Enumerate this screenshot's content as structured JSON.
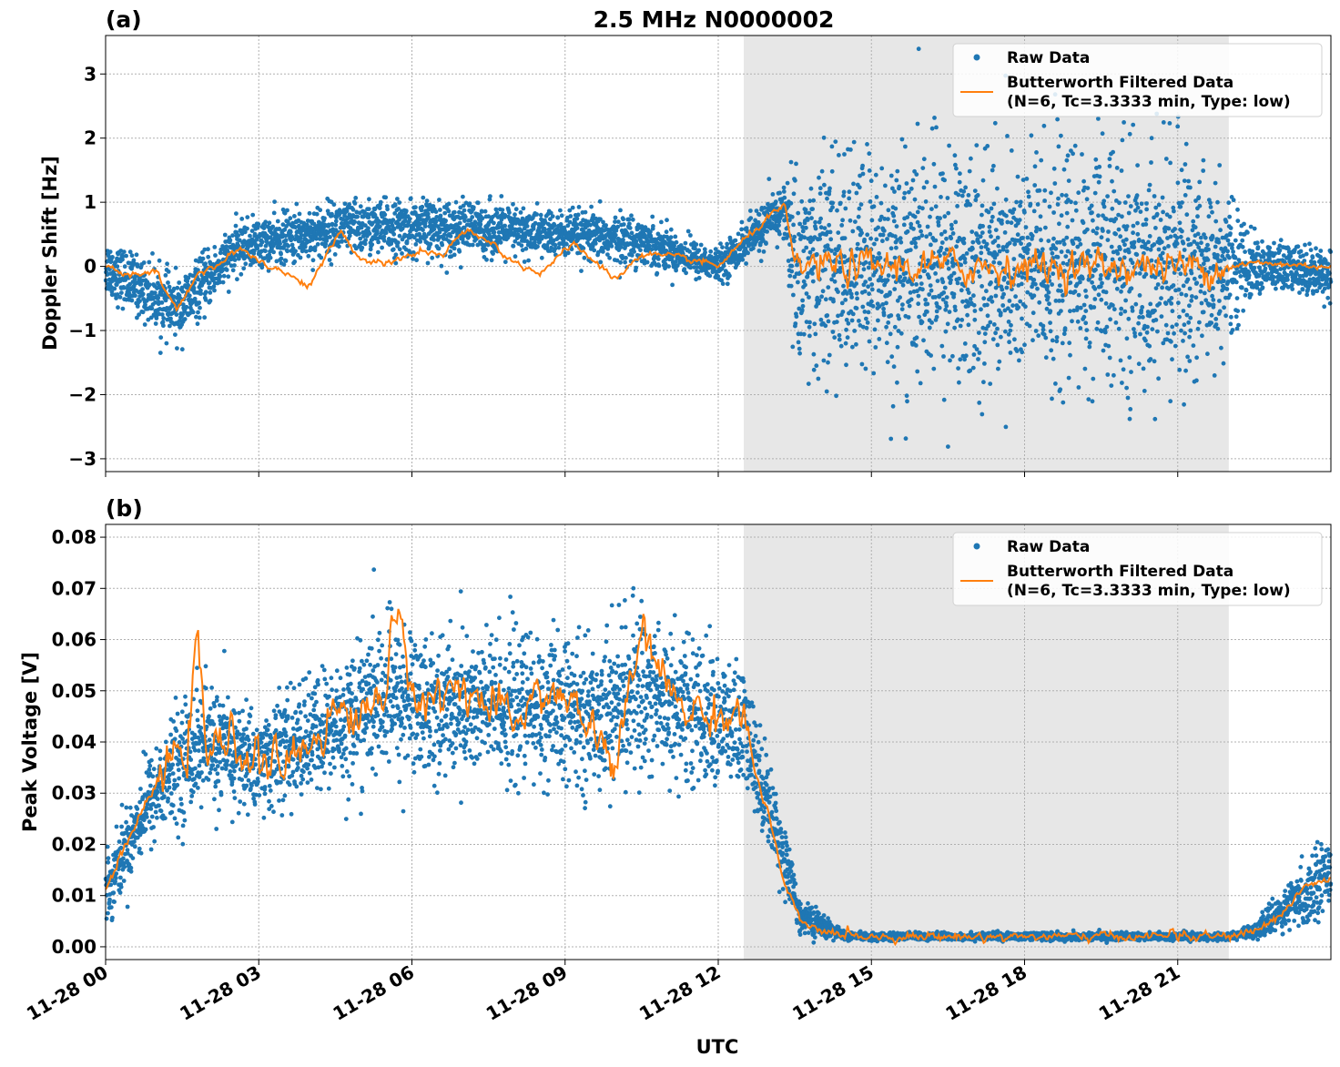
{
  "title": "2.5 MHz N0000002",
  "xlabel": "UTC",
  "colors": {
    "raw": "#1f77b4",
    "filtered": "#ff7f0e",
    "shade": "#e7e7e7",
    "grid": "#b0b0b0"
  },
  "legend": {
    "raw_label": "Raw Data",
    "filtered_label_line1": "Butterworth Filtered Data",
    "filtered_label_line2": "(N=6, Tc=3.3333 min, Type: low)",
    "placement": "top-right"
  },
  "x_ticks": [
    "11-28 00",
    "11-28 03",
    "11-28 06",
    "11-28 09",
    "11-28 12",
    "11-28 15",
    "11-28 18",
    "11-28 21"
  ],
  "chart_data": [
    {
      "panel": "(a)",
      "type": "scatter",
      "ylabel": "Doppler Shift [Hz]",
      "xlim_hours": [
        0,
        24
      ],
      "ylim": [
        -3.2,
        3.6
      ],
      "yticks": [
        -3,
        -2,
        -1,
        0,
        1,
        2,
        3
      ],
      "ytick_labels": [
        "−3",
        "−2",
        "−1",
        "0",
        "1",
        "2",
        "3"
      ],
      "grid": true,
      "shaded_interval_hours": [
        12.5,
        22.0
      ],
      "series": [
        {
          "name": "Raw Data",
          "kind": "points",
          "x_hours": [
            0,
            1.4,
            2.6,
            4.6,
            7.0,
            8.8,
            10.5,
            12.0,
            13.3,
            13.5,
            16,
            19,
            21.5,
            22.5,
            24
          ],
          "center": [
            0.0,
            -0.7,
            0.3,
            0.6,
            0.6,
            0.5,
            0.4,
            0.0,
            0.9,
            0.0,
            0.0,
            0.0,
            0.0,
            0.0,
            -0.1
          ],
          "spread": [
            0.35,
            0.4,
            0.3,
            0.35,
            0.35,
            0.3,
            0.3,
            0.2,
            0.35,
            1.3,
            1.5,
            1.5,
            1.4,
            0.35,
            0.3
          ]
        },
        {
          "name": "Butterworth Filtered Data (N=6, Tc=3.3333 min, Type: low)",
          "kind": "line",
          "x_hours": [
            0,
            0.5,
            1.0,
            1.4,
            1.8,
            2.3,
            2.6,
            3.0,
            3.5,
            4.0,
            4.6,
            5.0,
            5.6,
            6.2,
            6.6,
            7.0,
            7.6,
            8.0,
            8.5,
            8.8,
            9.2,
            9.6,
            10.0,
            10.5,
            11.0,
            11.5,
            12.0,
            12.5,
            12.9,
            13.3,
            13.5,
            22.0,
            22.5,
            24
          ],
          "y": [
            0.0,
            -0.15,
            -0.1,
            -0.7,
            -0.1,
            0.05,
            0.3,
            0.1,
            -0.1,
            -0.3,
            0.55,
            0.1,
            0.05,
            0.25,
            0.15,
            0.55,
            0.35,
            0.05,
            -0.1,
            0.1,
            0.35,
            0.05,
            -0.2,
            0.2,
            0.15,
            0.1,
            0.0,
            0.4,
            0.7,
            0.95,
            0.0,
            0.0,
            0.05,
            0.0
          ],
          "noise_region_hours": [
            13.5,
            22.0
          ],
          "noise_amplitude": 0.25
        }
      ]
    },
    {
      "panel": "(b)",
      "type": "scatter",
      "ylabel": "Peak Voltage [V]",
      "xlim_hours": [
        0,
        24
      ],
      "ylim": [
        -0.0025,
        0.0825
      ],
      "yticks": [
        0.0,
        0.01,
        0.02,
        0.03,
        0.04,
        0.05,
        0.06,
        0.07,
        0.08
      ],
      "ytick_labels": [
        "0.00",
        "0.01",
        "0.02",
        "0.03",
        "0.04",
        "0.05",
        "0.06",
        "0.07",
        "0.08"
      ],
      "grid": true,
      "shaded_interval_hours": [
        12.5,
        22.0
      ],
      "series": [
        {
          "name": "Raw Data",
          "kind": "points",
          "x_hours": [
            0,
            0.8,
            1.8,
            3.0,
            4.5,
            5.5,
            6.5,
            8.0,
            9.5,
            10.5,
            11.5,
            12.5,
            13.0,
            13.6,
            14.5,
            21.0,
            22.0,
            22.5,
            23.5,
            24
          ],
          "center": [
            0.011,
            0.028,
            0.04,
            0.036,
            0.043,
            0.049,
            0.047,
            0.047,
            0.045,
            0.05,
            0.046,
            0.042,
            0.028,
            0.006,
            0.002,
            0.002,
            0.002,
            0.003,
            0.01,
            0.016
          ],
          "spread": [
            0.005,
            0.007,
            0.01,
            0.008,
            0.01,
            0.012,
            0.011,
            0.012,
            0.011,
            0.013,
            0.011,
            0.01,
            0.007,
            0.003,
            0.0006,
            0.0006,
            0.0006,
            0.001,
            0.005,
            0.006
          ]
        },
        {
          "name": "Butterworth Filtered Data (N=6, Tc=3.3333 min, Type: low)",
          "kind": "line",
          "x_hours": [
            0,
            0.4,
            0.8,
            1.2,
            1.6,
            1.8,
            2.0,
            2.5,
            3.0,
            3.5,
            4.0,
            4.5,
            5.0,
            5.5,
            5.6,
            6.0,
            6.5,
            7.0,
            7.5,
            8.0,
            8.5,
            9.0,
            9.5,
            10.0,
            10.5,
            11.0,
            11.5,
            12.0,
            12.5,
            12.7,
            13.0,
            13.3,
            13.6,
            14.0,
            15.0,
            20.8,
            20.9,
            21.0,
            22.0,
            22.5,
            23.0,
            23.5,
            24
          ],
          "y": [
            0.011,
            0.02,
            0.028,
            0.035,
            0.04,
            0.058,
            0.038,
            0.04,
            0.036,
            0.035,
            0.04,
            0.046,
            0.045,
            0.05,
            0.067,
            0.05,
            0.048,
            0.052,
            0.046,
            0.044,
            0.05,
            0.048,
            0.043,
            0.035,
            0.062,
            0.05,
            0.046,
            0.045,
            0.046,
            0.035,
            0.025,
            0.012,
            0.005,
            0.003,
            0.002,
            0.002,
            0.004,
            0.002,
            0.002,
            0.003,
            0.006,
            0.012,
            0.013
          ],
          "noise_region_hours": [
            1.0,
            12.6
          ],
          "noise_amplitude": 0.004
        }
      ]
    }
  ]
}
